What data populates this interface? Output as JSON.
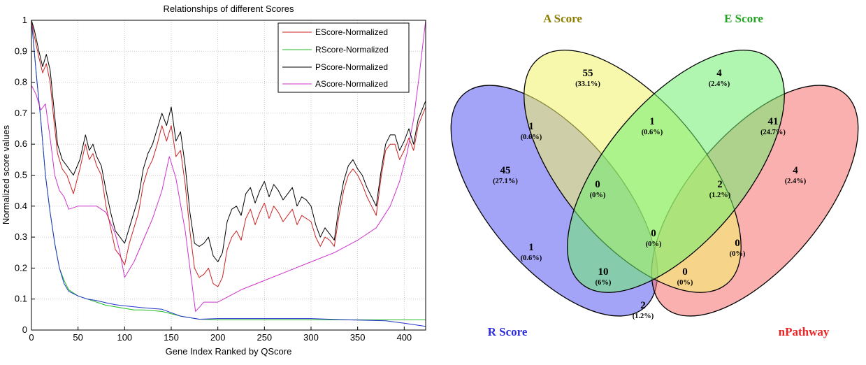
{
  "chart_data": [
    {
      "type": "line",
      "title": "Relationships of different Scores",
      "xlabel": "Gene Index Ranked by QScore",
      "ylabel": "Normalized score values",
      "xlim": [
        0,
        423
      ],
      "ylim": [
        0,
        1
      ],
      "xticks": [
        "0",
        "50",
        "100",
        "150",
        "200",
        "250",
        "300",
        "350",
        "400"
      ],
      "yticks": [
        "0",
        "0.1",
        "0.2",
        "0.3",
        "0.4",
        "0.5",
        "0.6",
        "0.7",
        "0.8",
        "0.9",
        "1"
      ],
      "grid": true,
      "legend_position": "top-right",
      "series": [
        {
          "name": "EScore-Normalized",
          "color": "#cc2222",
          "x": [
            0,
            3,
            8,
            12,
            16,
            20,
            24,
            28,
            33,
            38,
            45,
            52,
            58,
            62,
            66,
            70,
            75,
            80,
            85,
            90,
            95,
            100,
            105,
            110,
            115,
            120,
            125,
            130,
            135,
            140,
            145,
            150,
            155,
            160,
            165,
            170,
            175,
            180,
            185,
            190,
            195,
            200,
            205,
            210,
            215,
            220,
            225,
            230,
            235,
            240,
            245,
            250,
            255,
            260,
            265,
            270,
            275,
            280,
            285,
            290,
            295,
            300,
            305,
            310,
            315,
            320,
            325,
            330,
            335,
            340,
            345,
            350,
            355,
            360,
            365,
            370,
            375,
            380,
            385,
            390,
            395,
            400,
            405,
            410,
            415,
            423
          ],
          "y": [
            1.0,
            0.95,
            0.88,
            0.83,
            0.86,
            0.8,
            0.68,
            0.57,
            0.52,
            0.5,
            0.44,
            0.52,
            0.6,
            0.55,
            0.57,
            0.53,
            0.5,
            0.4,
            0.33,
            0.26,
            0.24,
            0.21,
            0.28,
            0.33,
            0.38,
            0.47,
            0.52,
            0.55,
            0.6,
            0.66,
            0.61,
            0.66,
            0.56,
            0.58,
            0.47,
            0.32,
            0.2,
            0.17,
            0.18,
            0.2,
            0.15,
            0.14,
            0.17,
            0.26,
            0.3,
            0.32,
            0.29,
            0.36,
            0.39,
            0.34,
            0.38,
            0.41,
            0.36,
            0.4,
            0.38,
            0.35,
            0.37,
            0.39,
            0.34,
            0.37,
            0.36,
            0.35,
            0.3,
            0.27,
            0.3,
            0.29,
            0.27,
            0.37,
            0.45,
            0.5,
            0.52,
            0.5,
            0.47,
            0.43,
            0.4,
            0.37,
            0.49,
            0.58,
            0.6,
            0.6,
            0.55,
            0.58,
            0.62,
            0.58,
            0.66,
            0.72
          ]
        },
        {
          "name": "RScore-Normalized",
          "color": "#22bb22",
          "x": [
            0,
            3,
            6,
            10,
            15,
            20,
            25,
            30,
            35,
            40,
            50,
            60,
            70,
            80,
            90,
            100,
            110,
            120,
            140,
            160,
            180,
            200,
            250,
            300,
            350,
            400,
            423
          ],
          "y": [
            1.0,
            0.9,
            0.8,
            0.68,
            0.5,
            0.38,
            0.28,
            0.2,
            0.16,
            0.13,
            0.11,
            0.1,
            0.09,
            0.08,
            0.075,
            0.07,
            0.065,
            0.065,
            0.06,
            0.045,
            0.035,
            0.033,
            0.033,
            0.033,
            0.033,
            0.033,
            0.033
          ]
        },
        {
          "name": "PScore-Normalized",
          "color": "#000000",
          "x": [
            0,
            3,
            8,
            12,
            16,
            20,
            24,
            28,
            33,
            38,
            45,
            52,
            58,
            62,
            66,
            70,
            75,
            80,
            85,
            90,
            95,
            100,
            105,
            110,
            115,
            120,
            125,
            130,
            135,
            140,
            145,
            150,
            155,
            160,
            165,
            170,
            175,
            180,
            185,
            190,
            195,
            200,
            205,
            210,
            215,
            220,
            225,
            230,
            235,
            240,
            245,
            250,
            255,
            260,
            265,
            270,
            275,
            280,
            285,
            290,
            295,
            300,
            305,
            310,
            315,
            320,
            325,
            330,
            335,
            340,
            345,
            350,
            355,
            360,
            365,
            370,
            375,
            380,
            385,
            390,
            395,
            400,
            405,
            410,
            415,
            423
          ],
          "y": [
            1.0,
            0.97,
            0.9,
            0.85,
            0.89,
            0.84,
            0.72,
            0.6,
            0.55,
            0.53,
            0.5,
            0.55,
            0.63,
            0.58,
            0.6,
            0.56,
            0.53,
            0.45,
            0.38,
            0.32,
            0.3,
            0.28,
            0.33,
            0.38,
            0.43,
            0.52,
            0.57,
            0.6,
            0.65,
            0.7,
            0.66,
            0.72,
            0.61,
            0.64,
            0.53,
            0.38,
            0.28,
            0.27,
            0.28,
            0.3,
            0.24,
            0.22,
            0.25,
            0.35,
            0.39,
            0.4,
            0.37,
            0.44,
            0.46,
            0.41,
            0.45,
            0.48,
            0.43,
            0.47,
            0.45,
            0.42,
            0.44,
            0.46,
            0.4,
            0.43,
            0.42,
            0.4,
            0.34,
            0.3,
            0.33,
            0.31,
            0.29,
            0.4,
            0.48,
            0.53,
            0.55,
            0.52,
            0.5,
            0.46,
            0.43,
            0.4,
            0.51,
            0.6,
            0.63,
            0.63,
            0.58,
            0.61,
            0.65,
            0.6,
            0.68,
            0.74
          ]
        },
        {
          "name": "AScore-Normalized",
          "color": "#cc33cc",
          "x": [
            0,
            5,
            10,
            15,
            20,
            25,
            30,
            35,
            40,
            50,
            60,
            70,
            80,
            90,
            95,
            100,
            110,
            120,
            130,
            140,
            148,
            155,
            165,
            176,
            185,
            200,
            225,
            250,
            275,
            300,
            325,
            350,
            370,
            385,
            395,
            403,
            410,
            416,
            423
          ],
          "y": [
            0.79,
            0.76,
            0.71,
            0.73,
            0.62,
            0.5,
            0.45,
            0.43,
            0.39,
            0.4,
            0.4,
            0.4,
            0.38,
            0.31,
            0.25,
            0.17,
            0.22,
            0.29,
            0.36,
            0.45,
            0.56,
            0.49,
            0.32,
            0.06,
            0.09,
            0.09,
            0.13,
            0.16,
            0.19,
            0.22,
            0.25,
            0.29,
            0.33,
            0.4,
            0.48,
            0.57,
            0.68,
            0.82,
            1.0
          ]
        },
        {
          "name": "",
          "color": "#2233cc",
          "x": [
            0,
            3,
            6,
            10,
            15,
            20,
            25,
            30,
            35,
            40,
            50,
            60,
            70,
            80,
            90,
            100,
            110,
            120,
            140,
            160,
            180,
            200,
            250,
            300,
            350,
            380,
            400,
            423
          ],
          "y": [
            1.0,
            0.9,
            0.8,
            0.68,
            0.5,
            0.38,
            0.28,
            0.2,
            0.15,
            0.125,
            0.11,
            0.1,
            0.095,
            0.088,
            0.082,
            0.078,
            0.075,
            0.072,
            0.067,
            0.045,
            0.035,
            0.037,
            0.037,
            0.037,
            0.032,
            0.03,
            0.022,
            0.012
          ]
        }
      ]
    },
    {
      "type": "venn",
      "sets": [
        {
          "label": "A Score",
          "color": "#f3f369",
          "label_color": "#8b7d00"
        },
        {
          "label": "E Score",
          "color": "#6fee6f",
          "label_color": "#22a322"
        },
        {
          "label": "R Score",
          "color": "#5858f0",
          "label_color": "#2d2de0"
        },
        {
          "label": "nPathway",
          "color": "#f87070",
          "label_color": "#ee2222"
        }
      ],
      "regions": [
        {
          "count": "55",
          "pct": "(33.1%)"
        },
        {
          "count": "4",
          "pct": "(2.4%)"
        },
        {
          "count": "1",
          "pct": "(0.6%)"
        },
        {
          "count": "1",
          "pct": "(0.6%)"
        },
        {
          "count": "41",
          "pct": "(24.7%)"
        },
        {
          "count": "45",
          "pct": "(27.1%)"
        },
        {
          "count": "0",
          "pct": "(0%)"
        },
        {
          "count": "2",
          "pct": "(1.2%)"
        },
        {
          "count": "4",
          "pct": "(2.4%)"
        },
        {
          "count": "1",
          "pct": "(0.6%)"
        },
        {
          "count": "0",
          "pct": "(0%)"
        },
        {
          "count": "0",
          "pct": "(0%)"
        },
        {
          "count": "10",
          "pct": "(6%)"
        },
        {
          "count": "0",
          "pct": "(0%)"
        },
        {
          "count": "2",
          "pct": "(1.2%)"
        }
      ]
    }
  ]
}
